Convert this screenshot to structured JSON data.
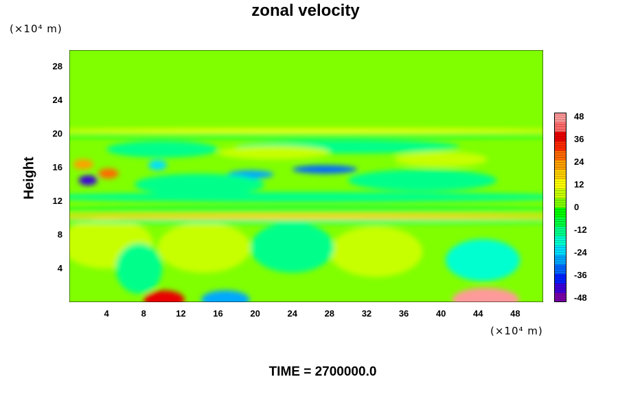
{
  "chart_data": {
    "type": "heatmap",
    "title": "zonal velocity",
    "ylabel": "Height",
    "xlabel": "",
    "x_unit": "(×10⁴ m)",
    "y_unit": "(×10⁴ m)",
    "footer": "TIME = 2700000.0",
    "xlim": [
      0,
      51
    ],
    "ylim": [
      0,
      30
    ],
    "x_ticks": [
      "4",
      "8",
      "12",
      "16",
      "20",
      "24",
      "28",
      "32",
      "36",
      "40",
      "44",
      "48"
    ],
    "y_ticks": [
      "4",
      "8",
      "12",
      "16",
      "20",
      "24",
      "28"
    ],
    "colorbar": {
      "min": -48,
      "max": 48,
      "tick_labels": [
        "48",
        "36",
        "24",
        "12",
        "0",
        "-12",
        "-24",
        "-36",
        "-48"
      ],
      "colors": [
        "#7a00a8",
        "#3d00d9",
        "#0020ff",
        "#0066ff",
        "#00a8ff",
        "#00e0ff",
        "#00ffd0",
        "#00ff8a",
        "#00ff3c",
        "#00ff00",
        "#80ff00",
        "#c8ff00",
        "#ffff00",
        "#ffd000",
        "#ffa000",
        "#ff6a00",
        "#ff2a00",
        "#e80000",
        "#ff6a6a",
        "#ff9a9a"
      ]
    },
    "background_value": 0,
    "features": [
      {
        "x": 10.2,
        "y": 0.3,
        "value": 38,
        "rx": 2.2,
        "ry": 1.1
      },
      {
        "x": 44.8,
        "y": 0.3,
        "value": 44,
        "rx": 3.6,
        "ry": 1.4
      },
      {
        "x": 16.8,
        "y": 0.3,
        "value": -28,
        "rx": 2.6,
        "ry": 1.1
      },
      {
        "x": 16.6,
        "y": 6.0,
        "value": 16,
        "rx": 2.0,
        "ry": 1.6
      },
      {
        "x": 35.0,
        "y": 5.5,
        "value": 16,
        "rx": 1.7,
        "ry": 0.9
      },
      {
        "x": 4.0,
        "y": 7.0,
        "value": 8,
        "rx": 5.0,
        "ry": 3.0
      },
      {
        "x": 14.5,
        "y": 6.5,
        "value": 8,
        "rx": 5.0,
        "ry": 3.0
      },
      {
        "x": 33.0,
        "y": 6.0,
        "value": 8,
        "rx": 5.0,
        "ry": 3.0
      },
      {
        "x": 24.0,
        "y": 6.5,
        "value": -12,
        "rx": 4.5,
        "ry": 3.0
      },
      {
        "x": 44.5,
        "y": 5.0,
        "value": -18,
        "rx": 4.0,
        "ry": 2.5
      },
      {
        "x": 7.5,
        "y": 4.0,
        "value": -10,
        "rx": 2.5,
        "ry": 3.0
      },
      {
        "x": 2.0,
        "y": 14.5,
        "value": -40,
        "rx": 1.0,
        "ry": 0.6
      },
      {
        "x": 4.2,
        "y": 15.3,
        "value": 26,
        "rx": 1.1,
        "ry": 0.6
      },
      {
        "x": 1.5,
        "y": 16.4,
        "value": 22,
        "rx": 1.1,
        "ry": 0.6
      },
      {
        "x": 27.5,
        "y": 15.8,
        "value": -30,
        "rx": 3.5,
        "ry": 0.5
      },
      {
        "x": 19.5,
        "y": 15.2,
        "value": -26,
        "rx": 2.5,
        "ry": 0.5
      },
      {
        "x": 9.5,
        "y": 16.3,
        "value": -24,
        "rx": 1.0,
        "ry": 0.6
      },
      {
        "x": 14.0,
        "y": 14.0,
        "value": -14,
        "rx": 7.0,
        "ry": 1.3
      },
      {
        "x": 38.0,
        "y": 14.5,
        "value": -12,
        "rx": 8.0,
        "ry": 1.3
      },
      {
        "x": 30.0,
        "y": 18.5,
        "value": -10,
        "rx": 12.0,
        "ry": 0.8
      },
      {
        "x": 10.0,
        "y": 18.2,
        "value": -12,
        "rx": 6.0,
        "ry": 1.0
      },
      {
        "x": 40.0,
        "y": 17.0,
        "value": 8,
        "rx": 5.0,
        "ry": 0.9
      },
      {
        "x": 22.0,
        "y": 17.8,
        "value": 6,
        "rx": 6.0,
        "ry": 0.8
      },
      {
        "x": 25.5,
        "y": 10.2,
        "value": 16,
        "rx": 30.0,
        "ry": 0.35
      },
      {
        "x": 25.5,
        "y": 9.6,
        "value": -10,
        "rx": 30.0,
        "ry": 0.25
      },
      {
        "x": 25.5,
        "y": 11.0,
        "value": -8,
        "rx": 30.0,
        "ry": 0.35
      },
      {
        "x": 25.5,
        "y": 20.4,
        "value": 10,
        "rx": 30.0,
        "ry": 0.25
      },
      {
        "x": 25.5,
        "y": 19.8,
        "value": -8,
        "rx": 30.0,
        "ry": 0.3
      },
      {
        "x": 25.5,
        "y": 12.5,
        "value": -12,
        "rx": 30.0,
        "ry": 0.6
      }
    ]
  }
}
